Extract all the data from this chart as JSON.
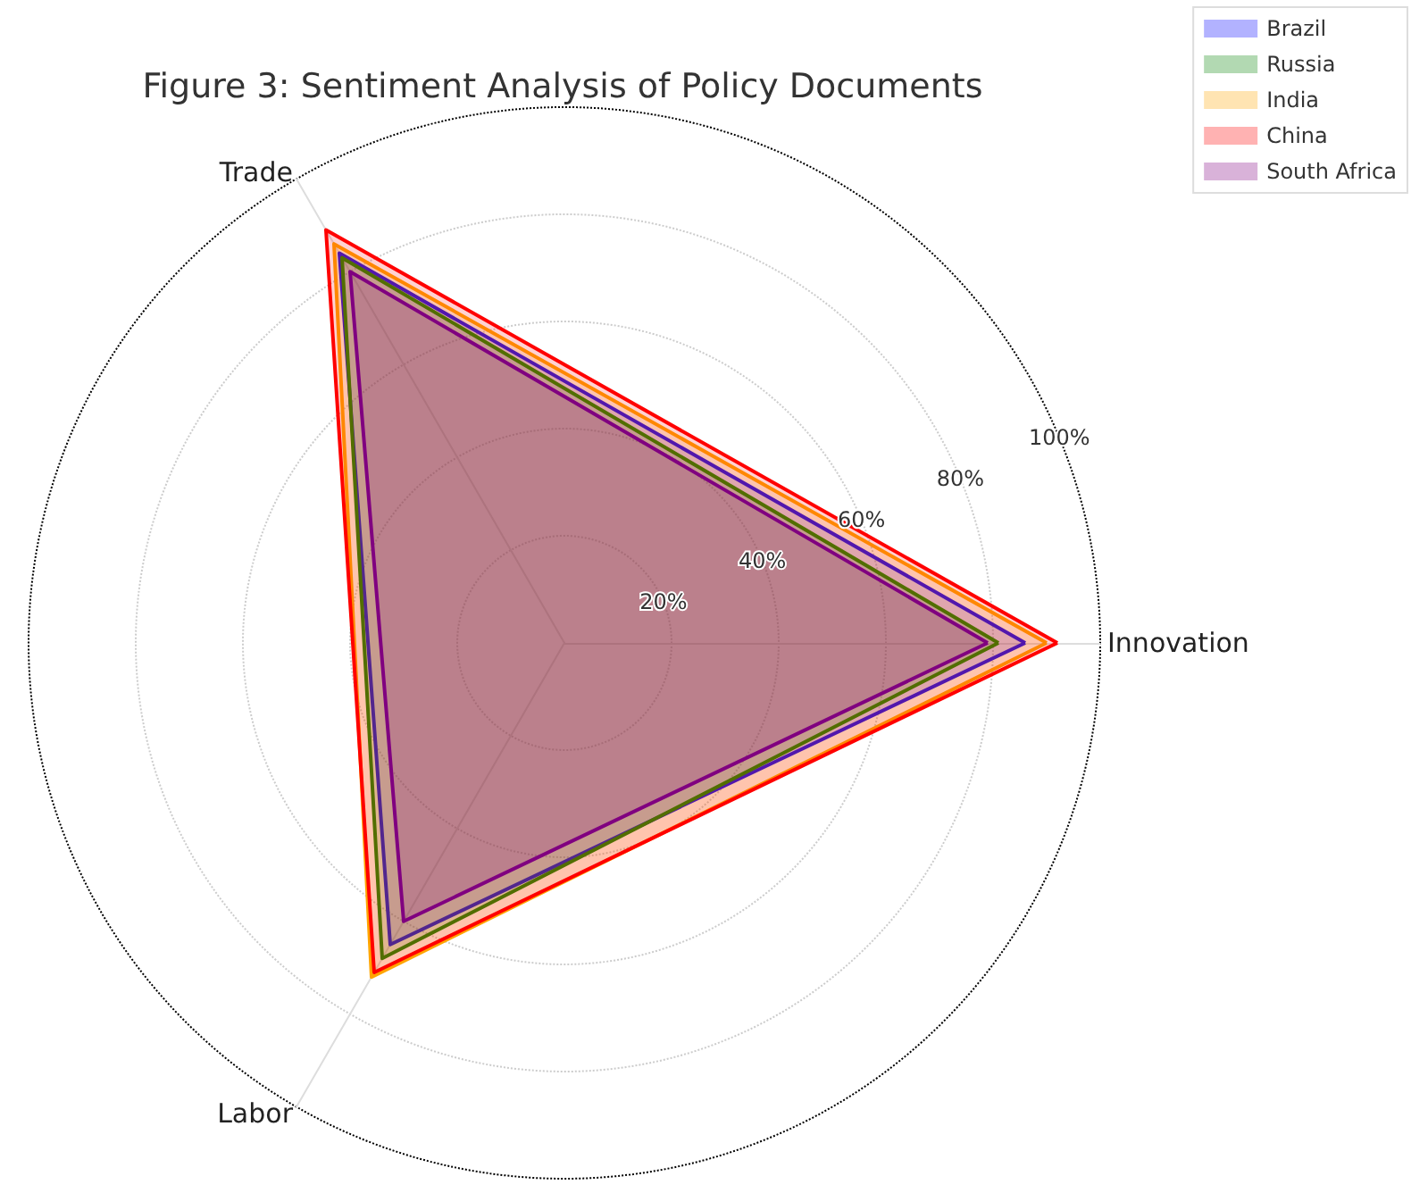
{
  "chart_data": {
    "type": "radar",
    "title": "Figure 3: Sentiment Analysis of Policy Documents",
    "categories": [
      "Innovation",
      "Labor",
      "Trade"
    ],
    "series": [
      {
        "name": "Brazil",
        "color": "#0000ff",
        "values": [
          86,
          65,
          84
        ]
      },
      {
        "name": "Russia",
        "color": "#008000",
        "values": [
          81,
          68,
          83
        ]
      },
      {
        "name": "India",
        "color": "#ffa500",
        "values": [
          90,
          72,
          86
        ]
      },
      {
        "name": "China",
        "color": "#ff0000",
        "values": [
          92,
          71,
          89
        ]
      },
      {
        "name": "South Africa",
        "color": "#800080",
        "values": [
          79,
          60,
          80
        ]
      }
    ],
    "ylim": [
      0,
      100
    ],
    "yticks": [
      {
        "value": 20,
        "label": "20%"
      },
      {
        "value": 40,
        "label": "40%"
      },
      {
        "value": 60,
        "label": "60%"
      },
      {
        "value": 80,
        "label": "80%"
      },
      {
        "value": 100,
        "label": "100%"
      }
    ],
    "grid": true,
    "legend": "top right"
  }
}
